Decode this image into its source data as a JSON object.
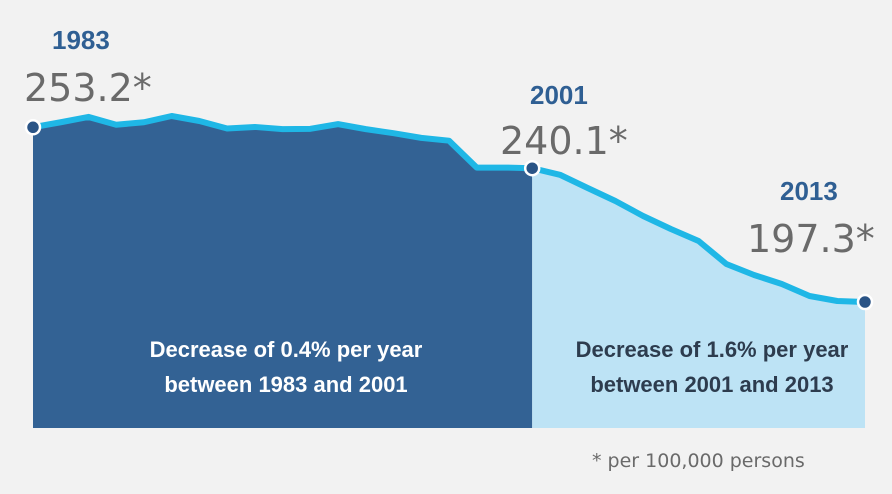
{
  "chart_data": {
    "type": "area",
    "x": [
      1983,
      1984,
      1985,
      1986,
      1987,
      1988,
      1989,
      1990,
      1991,
      1992,
      1993,
      1994,
      1995,
      1996,
      1997,
      1998,
      1999,
      2000,
      2001,
      2002,
      2003,
      2004,
      2005,
      2006,
      2007,
      2008,
      2009,
      2010,
      2011,
      2012,
      2013
    ],
    "values": [
      253.2,
      254.8,
      256.5,
      254.0,
      254.8,
      256.8,
      255.2,
      252.8,
      253.3,
      252.6,
      252.7,
      254.2,
      252.6,
      251.3,
      249.8,
      248.9,
      240.3,
      240.3,
      240.1,
      238.0,
      236.0,
      234.5,
      233.0,
      230.0,
      228.5,
      227.0,
      225.5,
      224.5,
      224.0,
      222.0,
      197.3
    ],
    "title": "",
    "xlabel": "",
    "ylabel": "",
    "grid": false,
    "colors": {
      "region1_fill": "#336294",
      "region2_fill": "#bde3f5",
      "line": "#1fb7e6",
      "marker": "#2a5486",
      "year_text": "#2f5f93",
      "value_text": "#6a6a6a"
    },
    "annotations": [
      {
        "year_label": "1983",
        "value_label": "253.2*"
      },
      {
        "year_label": "2001",
        "value_label": "240.1*"
      },
      {
        "year_label": "2013",
        "value_label": "197.3*"
      }
    ],
    "regions": [
      {
        "from": 1983,
        "to": 2001,
        "line1": "Decrease of 0.4% per year",
        "line2": "between 1983 and 2001"
      },
      {
        "from": 2001,
        "to": 2013,
        "line1": "Decrease of 1.6% per year",
        "line2": "between 2001 and 2013"
      }
    ],
    "footnote": "* per 100,000 persons"
  }
}
